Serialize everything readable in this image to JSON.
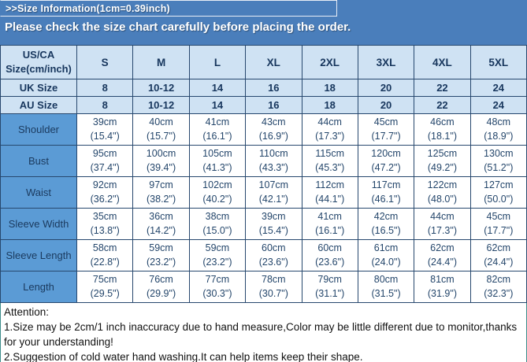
{
  "header": {
    "title": ">>Size Information(1cm=0.39inch)",
    "subtitle": "Please check the size chart carefully before placing the order."
  },
  "table": {
    "corner": {
      "line1": "US/CA",
      "line2": "Size(cm/inch)"
    },
    "size_columns": [
      "S",
      "M",
      "L",
      "XL",
      "2XL",
      "3XL",
      "4XL",
      "5XL"
    ],
    "conversion_rows": [
      {
        "label": "UK Size",
        "values": [
          "8",
          "10-12",
          "14",
          "16",
          "18",
          "20",
          "22",
          "24"
        ]
      },
      {
        "label": "AU Size",
        "values": [
          "8",
          "10-12",
          "14",
          "16",
          "18",
          "20",
          "22",
          "24"
        ]
      }
    ],
    "measurement_rows": [
      {
        "label": "Shoulder",
        "cm": [
          "39cm",
          "40cm",
          "41cm",
          "43cm",
          "44cm",
          "45cm",
          "46cm",
          "48cm"
        ],
        "inch": [
          "(15.4\")",
          "(15.7\")",
          "(16.1\")",
          "(16.9\")",
          "(17.3\")",
          "(17.7\")",
          "(18.1\")",
          "(18.9\")"
        ]
      },
      {
        "label": "Bust",
        "cm": [
          "95cm",
          "100cm",
          "105cm",
          "110cm",
          "115cm",
          "120cm",
          "125cm",
          "130cm"
        ],
        "inch": [
          "(37.4\")",
          "(39.4\")",
          "(41.3\")",
          "(43.3\")",
          "(45.3\")",
          "(47.2\")",
          "(49.2\")",
          "(51.2\")"
        ]
      },
      {
        "label": "Waist",
        "cm": [
          "92cm",
          "97cm",
          "102cm",
          "107cm",
          "112cm",
          "117cm",
          "122cm",
          "127cm"
        ],
        "inch": [
          "(36.2\")",
          "(38.2\")",
          "(40.2\")",
          "(42.1\")",
          "(44.1\")",
          "(46.1\")",
          "(48.0\")",
          "(50.0\")"
        ]
      },
      {
        "label": "Sleeve Width",
        "cm": [
          "35cm",
          "36cm",
          "38cm",
          "39cm",
          "41cm",
          "42cm",
          "44cm",
          "45cm"
        ],
        "inch": [
          "(13.8\")",
          "(14.2\")",
          "(15.0\")",
          "(15.4\")",
          "(16.1\")",
          "(16.5\")",
          "(17.3\")",
          "(17.7\")"
        ]
      },
      {
        "label": "Sleeve Length",
        "cm": [
          "58cm",
          "59cm",
          "59cm",
          "60cm",
          "60cm",
          "61cm",
          "62cm",
          "62cm"
        ],
        "inch": [
          "(22.8\")",
          "(23.2\")",
          "(23.2\")",
          "(23.6\")",
          "(23.6\")",
          "(24.0\")",
          "(24.4\")",
          "(24.4\")"
        ]
      },
      {
        "label": "Length",
        "cm": [
          "75cm",
          "76cm",
          "77cm",
          "78cm",
          "79cm",
          "80cm",
          "81cm",
          "82cm"
        ],
        "inch": [
          "(29.5\")",
          "(29.9\")",
          "(30.3\")",
          "(30.7\")",
          "(31.1\")",
          "(31.5\")",
          "(31.9\")",
          "(32.3\")"
        ]
      }
    ]
  },
  "attention": {
    "title": "Attention:",
    "lines": [
      "1.Size may be 2cm/1 inch inaccuracy due to hand measure,Color may be little different due to monitor,thanks for your understanding!",
      "2.Suggestion of cold water hand washing.It can help items keep their shape."
    ]
  },
  "colors": {
    "header_bar": "#4a7ebb",
    "header_row_bg": "#cfe2f3",
    "label_column_bg": "#5b9bd5",
    "table_border": "#27486e",
    "header_text": "#17365d",
    "cell_text": "#24466b",
    "title_text": "#ffffff",
    "footer_border": "#3c8c8a"
  }
}
